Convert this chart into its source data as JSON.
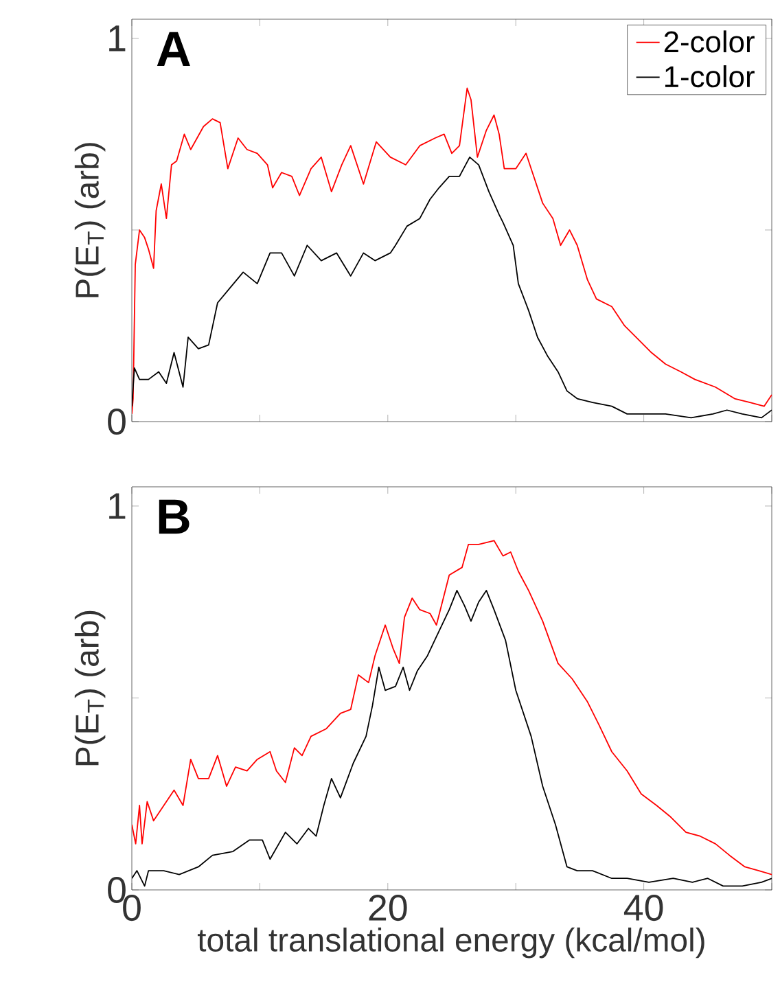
{
  "chart_data": [
    {
      "type": "line",
      "title": "A",
      "ylabel": "P(E$_{T}$) (arb)",
      "xlim": [
        0,
        50
      ],
      "ylim": [
        0,
        1.05
      ],
      "xticks": [
        0,
        {
          "value": 10,
          "label": null
        },
        20,
        {
          "value": 30,
          "label": null
        },
        40,
        {
          "value": 50,
          "label": null
        }
      ],
      "yticks": [
        0,
        {
          "value": 0.5,
          "label": null
        },
        1
      ],
      "tick_labels": "y",
      "legend": "top right",
      "line_style": "solid",
      "marker": "none",
      "series": [
        {
          "name": "2-color",
          "color": "#ff0000",
          "x": [
            0,
            0.1,
            0.27,
            0.6,
            1,
            1.3,
            1.7,
            1.9,
            2.3,
            2.7,
            3.1,
            3.5,
            4.1,
            4.6,
            5.6,
            6.3,
            6.9,
            7.5,
            8.3,
            9,
            9.8,
            10.6,
            11,
            11.7,
            12.5,
            13.1,
            14,
            14.8,
            15.6,
            16.4,
            17.1,
            18.1,
            19.1,
            20.2,
            21.4,
            22.5,
            23.7,
            24.4,
            25,
            25.6,
            26.2,
            26.5,
            27,
            27.7,
            28.3,
            28.7,
            29.1,
            30,
            30.8,
            31.3,
            32.1,
            32.9,
            33.5,
            34.2,
            34.8,
            35.6,
            36.3,
            37.5,
            38.5,
            39.4,
            40.6,
            41.7,
            42.9,
            44,
            45.6,
            47.1,
            48.3,
            49.4,
            50
          ],
          "values": [
            0.02,
            0.06,
            0.41,
            0.5,
            0.48,
            0.45,
            0.4,
            0.55,
            0.62,
            0.53,
            0.67,
            0.68,
            0.75,
            0.71,
            0.77,
            0.79,
            0.78,
            0.66,
            0.74,
            0.71,
            0.7,
            0.67,
            0.61,
            0.65,
            0.64,
            0.59,
            0.66,
            0.69,
            0.6,
            0.67,
            0.72,
            0.62,
            0.73,
            0.69,
            0.67,
            0.72,
            0.74,
            0.75,
            0.7,
            0.72,
            0.87,
            0.84,
            0.69,
            0.76,
            0.8,
            0.75,
            0.66,
            0.66,
            0.7,
            0.65,
            0.57,
            0.53,
            0.46,
            0.5,
            0.46,
            0.37,
            0.32,
            0.3,
            0.25,
            0.22,
            0.18,
            0.15,
            0.13,
            0.11,
            0.09,
            0.06,
            0.05,
            0.04,
            0.07
          ]
        },
        {
          "name": "1-color",
          "color": "#000000",
          "x": [
            0,
            0.2,
            0.6,
            1.3,
            2.1,
            2.7,
            3.3,
            4,
            4.4,
            5.2,
            6,
            6.7,
            7.7,
            8.7,
            9.8,
            10.8,
            11.7,
            12.7,
            13.7,
            14.8,
            16,
            17.1,
            18.1,
            19,
            20.2,
            20.6,
            21.5,
            22.5,
            23.3,
            24,
            24.8,
            25.6,
            26.4,
            27.1,
            27.9,
            28.7,
            29,
            29.8,
            30.2,
            31,
            31.7,
            32.5,
            33.3,
            34,
            34.8,
            36,
            37.5,
            38.7,
            40,
            41.7,
            43.7,
            45.4,
            46.5,
            47.7,
            49.2,
            50
          ],
          "values": [
            0.04,
            0.14,
            0.11,
            0.11,
            0.13,
            0.1,
            0.18,
            0.09,
            0.22,
            0.19,
            0.2,
            0.31,
            0.35,
            0.39,
            0.36,
            0.44,
            0.44,
            0.38,
            0.46,
            0.42,
            0.44,
            0.38,
            0.44,
            0.42,
            0.44,
            0.46,
            0.51,
            0.53,
            0.58,
            0.61,
            0.64,
            0.64,
            0.69,
            0.67,
            0.6,
            0.54,
            0.52,
            0.46,
            0.36,
            0.29,
            0.22,
            0.17,
            0.13,
            0.08,
            0.06,
            0.05,
            0.04,
            0.02,
            0.02,
            0.02,
            0.01,
            0.02,
            0.03,
            0.02,
            0.01,
            0.03
          ]
        }
      ]
    },
    {
      "type": "line",
      "title": "B",
      "xlabel": "total translational energy (kcal/mol)",
      "ylabel": "P(E$_{T}$) (arb)",
      "xlim": [
        0,
        50
      ],
      "ylim": [
        0,
        1.05
      ],
      "xticks": [
        0,
        {
          "value": 10,
          "label": null
        },
        20,
        {
          "value": 30,
          "label": null
        },
        40,
        {
          "value": 50,
          "label": null
        }
      ],
      "yticks": [
        0,
        {
          "value": 0.5,
          "label": null
        },
        1
      ],
      "line_style": "solid",
      "marker": "none",
      "series": [
        {
          "color": "#ff0000",
          "x": [
            0,
            0.3,
            0.6,
            0.8,
            1.2,
            1.7,
            2.5,
            3.3,
            4,
            4.6,
            5.2,
            6,
            6.7,
            7.4,
            8.1,
            9,
            9.8,
            10.8,
            11.3,
            12,
            12.7,
            13.3,
            14,
            15.2,
            16.3,
            17.1,
            17.7,
            18.5,
            19,
            19.8,
            20.4,
            20.9,
            21.3,
            21.9,
            22.5,
            23.3,
            23.8,
            24.8,
            25.8,
            26.3,
            27.1,
            28.3,
            29,
            29.6,
            30.2,
            31,
            32.1,
            33.3,
            34.4,
            35.6,
            36.5,
            37.5,
            38.7,
            39.8,
            41,
            42.1,
            43.3,
            44.4,
            45.6,
            46.7,
            47.9,
            49,
            50
          ],
          "values": [
            0.17,
            0.12,
            0.22,
            0.12,
            0.23,
            0.18,
            0.22,
            0.26,
            0.22,
            0.34,
            0.29,
            0.29,
            0.35,
            0.27,
            0.32,
            0.31,
            0.34,
            0.36,
            0.31,
            0.28,
            0.37,
            0.35,
            0.4,
            0.42,
            0.46,
            0.47,
            0.56,
            0.54,
            0.61,
            0.69,
            0.63,
            0.59,
            0.71,
            0.76,
            0.73,
            0.72,
            0.69,
            0.82,
            0.84,
            0.9,
            0.9,
            0.91,
            0.87,
            0.88,
            0.83,
            0.78,
            0.7,
            0.59,
            0.55,
            0.49,
            0.43,
            0.36,
            0.31,
            0.25,
            0.22,
            0.19,
            0.15,
            0.14,
            0.12,
            0.09,
            0.06,
            0.05,
            0.04
          ]
        },
        {
          "color": "#000000",
          "x": [
            0,
            0.4,
            1,
            1.3,
            2.5,
            3.7,
            5.2,
            6.3,
            7.9,
            9.2,
            10.2,
            10.8,
            12,
            12.9,
            13.8,
            14.4,
            15,
            15.6,
            16.3,
            17.3,
            18.3,
            18.8,
            19.3,
            19.8,
            20.6,
            21.2,
            21.7,
            22.3,
            23.1,
            23.8,
            24.8,
            25.4,
            26,
            26.5,
            27.1,
            27.7,
            28.3,
            29.2,
            30,
            31.2,
            32.1,
            33.1,
            34,
            34.8,
            36,
            37.5,
            38.7,
            40.4,
            42.3,
            43.8,
            45,
            46.2,
            47.7,
            49.2,
            50
          ],
          "values": [
            0.03,
            0.05,
            0.01,
            0.05,
            0.05,
            0.04,
            0.06,
            0.09,
            0.1,
            0.13,
            0.13,
            0.08,
            0.15,
            0.12,
            0.16,
            0.14,
            0.22,
            0.29,
            0.24,
            0.33,
            0.4,
            0.48,
            0.58,
            0.52,
            0.53,
            0.58,
            0.52,
            0.57,
            0.61,
            0.66,
            0.73,
            0.78,
            0.74,
            0.7,
            0.75,
            0.78,
            0.73,
            0.65,
            0.52,
            0.4,
            0.27,
            0.17,
            0.06,
            0.05,
            0.05,
            0.03,
            0.03,
            0.02,
            0.03,
            0.02,
            0.03,
            0.01,
            0.01,
            0.02,
            0.03
          ]
        }
      ]
    }
  ]
}
